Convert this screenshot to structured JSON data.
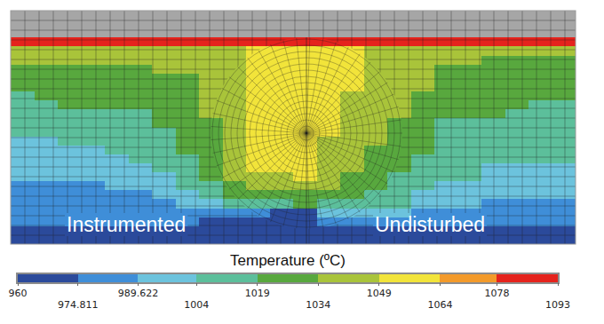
{
  "chart_data": {
    "type": "contour",
    "annotations": [
      "Instrumented",
      "Undisturbed"
    ],
    "colorbar": {
      "label": "Temperature (ºC)",
      "range": [
        960,
        1093
      ],
      "ticks": [
        960,
        974.811,
        989.622,
        1004,
        1019,
        1034,
        1049,
        1064,
        1078,
        1093
      ],
      "colors": [
        "#2b4a9b",
        "#3f8ed8",
        "#6cc3dd",
        "#5cbf9b",
        "#58a83e",
        "#a9c43a",
        "#f2e43a",
        "#f39a2a",
        "#e5231d"
      ]
    },
    "cells": [
      [
        null,
        null,
        null,
        null,
        null,
        null,
        null,
        null,
        null,
        null,
        null,
        null,
        null,
        null,
        null,
        null,
        null,
        null,
        null,
        null,
        null,
        null,
        null,
        null
      ],
      [
        null,
        null,
        null,
        null,
        null,
        null,
        null,
        null,
        null,
        null,
        null,
        null,
        null,
        null,
        null,
        null,
        null,
        null,
        null,
        null,
        null,
        null,
        null,
        null
      ],
      [
        null,
        null,
        null,
        null,
        null,
        null,
        null,
        null,
        null,
        null,
        null,
        null,
        null,
        null,
        null,
        null,
        null,
        null,
        null,
        null,
        null,
        null,
        null,
        null
      ],
      [
        1080,
        1080,
        1080,
        1080,
        1080,
        1080,
        1080,
        1080,
        1080,
        1080,
        1080,
        1080,
        1080,
        1080,
        1080,
        1080,
        1080,
        1080,
        1080,
        1080,
        1080,
        1080,
        1080,
        1080
      ],
      [
        1041,
        1041,
        1041,
        1041,
        1041,
        1041,
        1041,
        1041,
        1041,
        1041,
        1056,
        1056,
        1056,
        1056,
        1056,
        1041,
        1041,
        1041,
        1041,
        1041,
        1041,
        1041,
        1041,
        1041
      ],
      [
        1036,
        1036,
        1041,
        1041,
        1041,
        1041,
        1041,
        1041,
        1041,
        1041,
        1056,
        1056,
        1056,
        1056,
        1056,
        1041,
        1041,
        1041,
        1038,
        1038,
        1030,
        1030,
        1030,
        1030
      ],
      [
        1031,
        1031,
        1031,
        1031,
        1033,
        1033,
        1040,
        1040,
        1040,
        1040,
        1056,
        1056,
        1056,
        1056,
        1052,
        1042,
        1042,
        1042,
        1032,
        1032,
        1029,
        1029,
        1029,
        1029
      ],
      [
        1028,
        1028,
        1028,
        1028,
        1028,
        1028,
        1033,
        1033,
        1040,
        1040,
        1057,
        1057,
        1057,
        1057,
        1051,
        1043,
        1043,
        1036,
        1028,
        1028,
        1028,
        1028,
        1028,
        1028
      ],
      [
        1022,
        1026,
        1026,
        1026,
        1026,
        1026,
        1026,
        1032,
        1037,
        1045,
        1058,
        1058,
        1058,
        1052,
        1052,
        1044,
        1044,
        1036,
        1025,
        1025,
        1025,
        1025,
        1025,
        1025
      ],
      [
        1017,
        1021,
        1021,
        1021,
        1025,
        1025,
        1025,
        1031,
        1037,
        1046,
        1059,
        1059,
        1059,
        1053,
        1048,
        1042,
        1042,
        1033,
        1023,
        1023,
        1023,
        1023,
        1023,
        1020
      ],
      [
        1014,
        1014,
        1020,
        1020,
        1020,
        1024,
        1024,
        1030,
        1036,
        1046,
        1059,
        1059,
        1059,
        1052,
        1047,
        1041,
        1036,
        1030,
        1021,
        1021,
        1021,
        1021,
        1016,
        1016
      ],
      [
        1012,
        1012,
        1012,
        1017,
        1017,
        1017,
        1022,
        1028,
        1035,
        1045,
        1058,
        1058,
        1058,
        1051,
        1046,
        1040,
        1034,
        1028,
        1020,
        1020,
        1020,
        1014,
        1014,
        1014
      ],
      [
        1010,
        1010,
        1010,
        1010,
        1015,
        1015,
        1020,
        1026,
        1033,
        1044,
        1057,
        1057,
        1057,
        1051,
        1045,
        1039,
        1032,
        1026,
        1018,
        1012,
        1012,
        1012,
        1012,
        1012
      ],
      [
        1007,
        1007,
        1007,
        1012,
        1012,
        1012,
        1018,
        1024,
        1032,
        1043,
        1056,
        1056,
        1056,
        1050,
        1044,
        1037,
        1030,
        1024,
        1016,
        1016,
        1016,
        1010,
        1010,
        1010
      ],
      [
        1002,
        1002,
        1006,
        1006,
        1006,
        1010,
        1016,
        1022,
        1030,
        1042,
        1055,
        1055,
        1055,
        1048,
        1042,
        1036,
        1028,
        1022,
        1014,
        1014,
        1014,
        1009,
        1009,
        1009
      ],
      [
        999,
        999,
        999,
        999,
        1005,
        1005,
        1013,
        1020,
        1029,
        1041,
        1054,
        1054,
        1054,
        1047,
        1040,
        1033,
        1026,
        1020,
        1012,
        1012,
        1012,
        1006,
        1006,
        1006
      ],
      [
        997,
        997,
        997,
        997,
        1000,
        1006,
        1012,
        1018,
        1027,
        1040,
        1053,
        1053,
        1053,
        1045,
        1038,
        1031,
        1024,
        1018,
        1010,
        1010,
        1010,
        1005,
        1005,
        1005
      ],
      [
        994,
        994,
        994,
        994,
        999,
        999,
        1008,
        1016,
        1025,
        1038,
        1051,
        1051,
        1051,
        1043,
        1036,
        1028,
        1021,
        1015,
        1008,
        1008,
        1001,
        1001,
        1001,
        1001
      ],
      [
        991,
        991,
        991,
        991,
        996,
        996,
        1002,
        1012,
        1022,
        1036,
        1046,
        1046,
        1050,
        1040,
        1033,
        1025,
        1018,
        1012,
        1005,
        1005,
        998,
        998,
        998,
        998
      ],
      [
        987,
        987,
        987,
        987,
        992,
        992,
        998,
        1008,
        1018,
        1030,
        1040,
        1040,
        1044,
        1034,
        1028,
        1021,
        1014,
        1008,
        1002,
        1002,
        995,
        995,
        995,
        995
      ],
      [
        985,
        985,
        985,
        985,
        988,
        988,
        994,
        1002,
        1012,
        1022,
        1030,
        1030,
        1033,
        1028,
        1022,
        1016,
        1010,
        1003,
        999,
        999,
        992,
        992,
        992,
        992
      ],
      [
        983,
        983,
        983,
        983,
        986,
        986,
        986,
        995,
        1003,
        1012,
        1017,
        1017,
        1020,
        1018,
        1014,
        1010,
        1005,
        1000,
        995,
        995,
        988,
        988,
        988,
        988
      ],
      [
        980,
        980,
        980,
        980,
        980,
        980,
        980,
        976,
        976,
        976,
        976,
        972,
        972,
        996,
        996,
        992,
        992,
        988,
        988,
        988,
        985,
        985,
        985,
        985
      ],
      [
        978,
        978,
        978,
        978,
        976,
        976,
        976,
        976,
        970,
        970,
        970,
        970,
        970,
        986,
        986,
        986,
        983,
        983,
        983,
        983,
        983,
        983,
        983,
        983
      ],
      [
        973,
        973,
        973,
        967,
        967,
        967,
        967,
        967,
        967,
        967,
        967,
        967,
        967,
        972,
        972,
        972,
        972,
        972,
        972,
        972,
        972,
        972,
        972,
        972
      ],
      [
        964,
        964,
        964,
        964,
        964,
        964,
        964,
        964,
        964,
        964,
        964,
        964,
        964,
        964,
        964,
        964,
        964,
        964,
        964,
        964,
        964,
        964,
        964,
        964
      ]
    ]
  }
}
